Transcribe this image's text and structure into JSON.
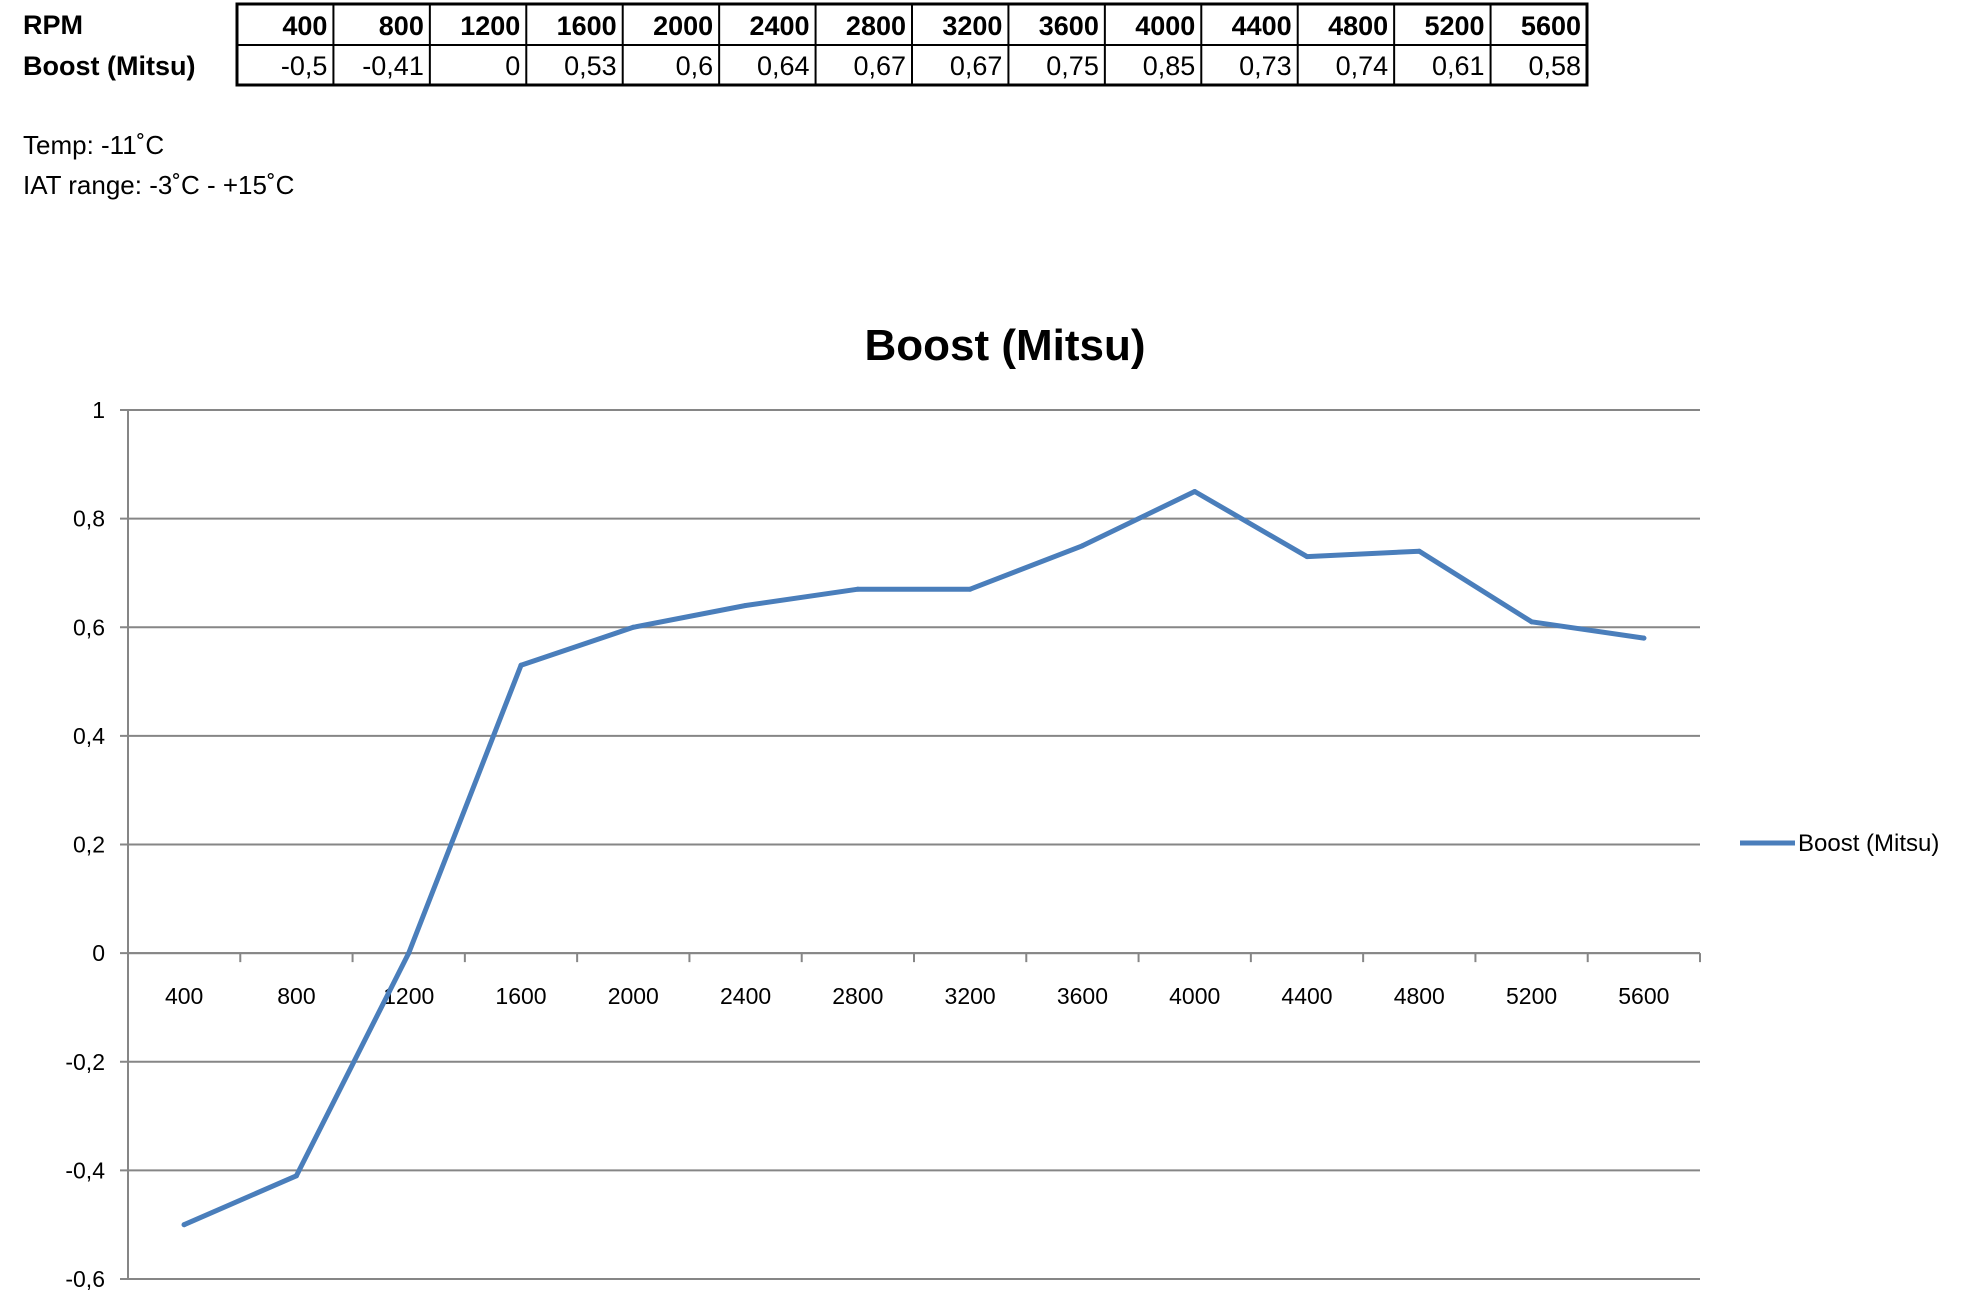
{
  "table": {
    "row_headers": [
      "RPM",
      "Boost (Mitsu)"
    ],
    "rpm": [
      "400",
      "800",
      "1200",
      "1600",
      "2000",
      "2400",
      "2800",
      "3200",
      "3600",
      "4000",
      "4400",
      "4800",
      "5200",
      "5600"
    ],
    "boost": [
      "-0,5",
      "-0,41",
      "0",
      "0,53",
      "0,6",
      "0,64",
      "0,67",
      "0,67",
      "0,75",
      "0,85",
      "0,73",
      "0,74",
      "0,61",
      "0,58"
    ]
  },
  "notes": {
    "temp": "Temp: -11˚C",
    "iat_range": "IAT range: -3˚C  -  +15˚C"
  },
  "chart_data": {
    "type": "line",
    "title": "Boost (Mitsu)",
    "xlabel": "",
    "ylabel": "",
    "categories": [
      "400",
      "800",
      "1200",
      "1600",
      "2000",
      "2400",
      "2800",
      "3200",
      "3600",
      "4000",
      "4400",
      "4800",
      "5200",
      "5600"
    ],
    "series": [
      {
        "name": "Boost (Mitsu)",
        "values": [
          -0.5,
          -0.41,
          0,
          0.53,
          0.6,
          0.64,
          0.67,
          0.67,
          0.75,
          0.85,
          0.73,
          0.74,
          0.61,
          0.58
        ]
      }
    ],
    "ylim": [
      -0.6,
      1
    ],
    "yticks": [
      -0.6,
      -0.4,
      -0.2,
      0,
      0.2,
      0.4,
      0.6,
      0.8,
      1
    ],
    "ytick_labels": [
      "-0,6",
      "-0,4",
      "-0,2",
      "0",
      "0,2",
      "0,4",
      "0,6",
      "0,8",
      "1"
    ],
    "grid": true,
    "legend": "right",
    "colors": {
      "line": "#4a7ebb",
      "grid": "#868686",
      "axis": "#868686"
    }
  }
}
